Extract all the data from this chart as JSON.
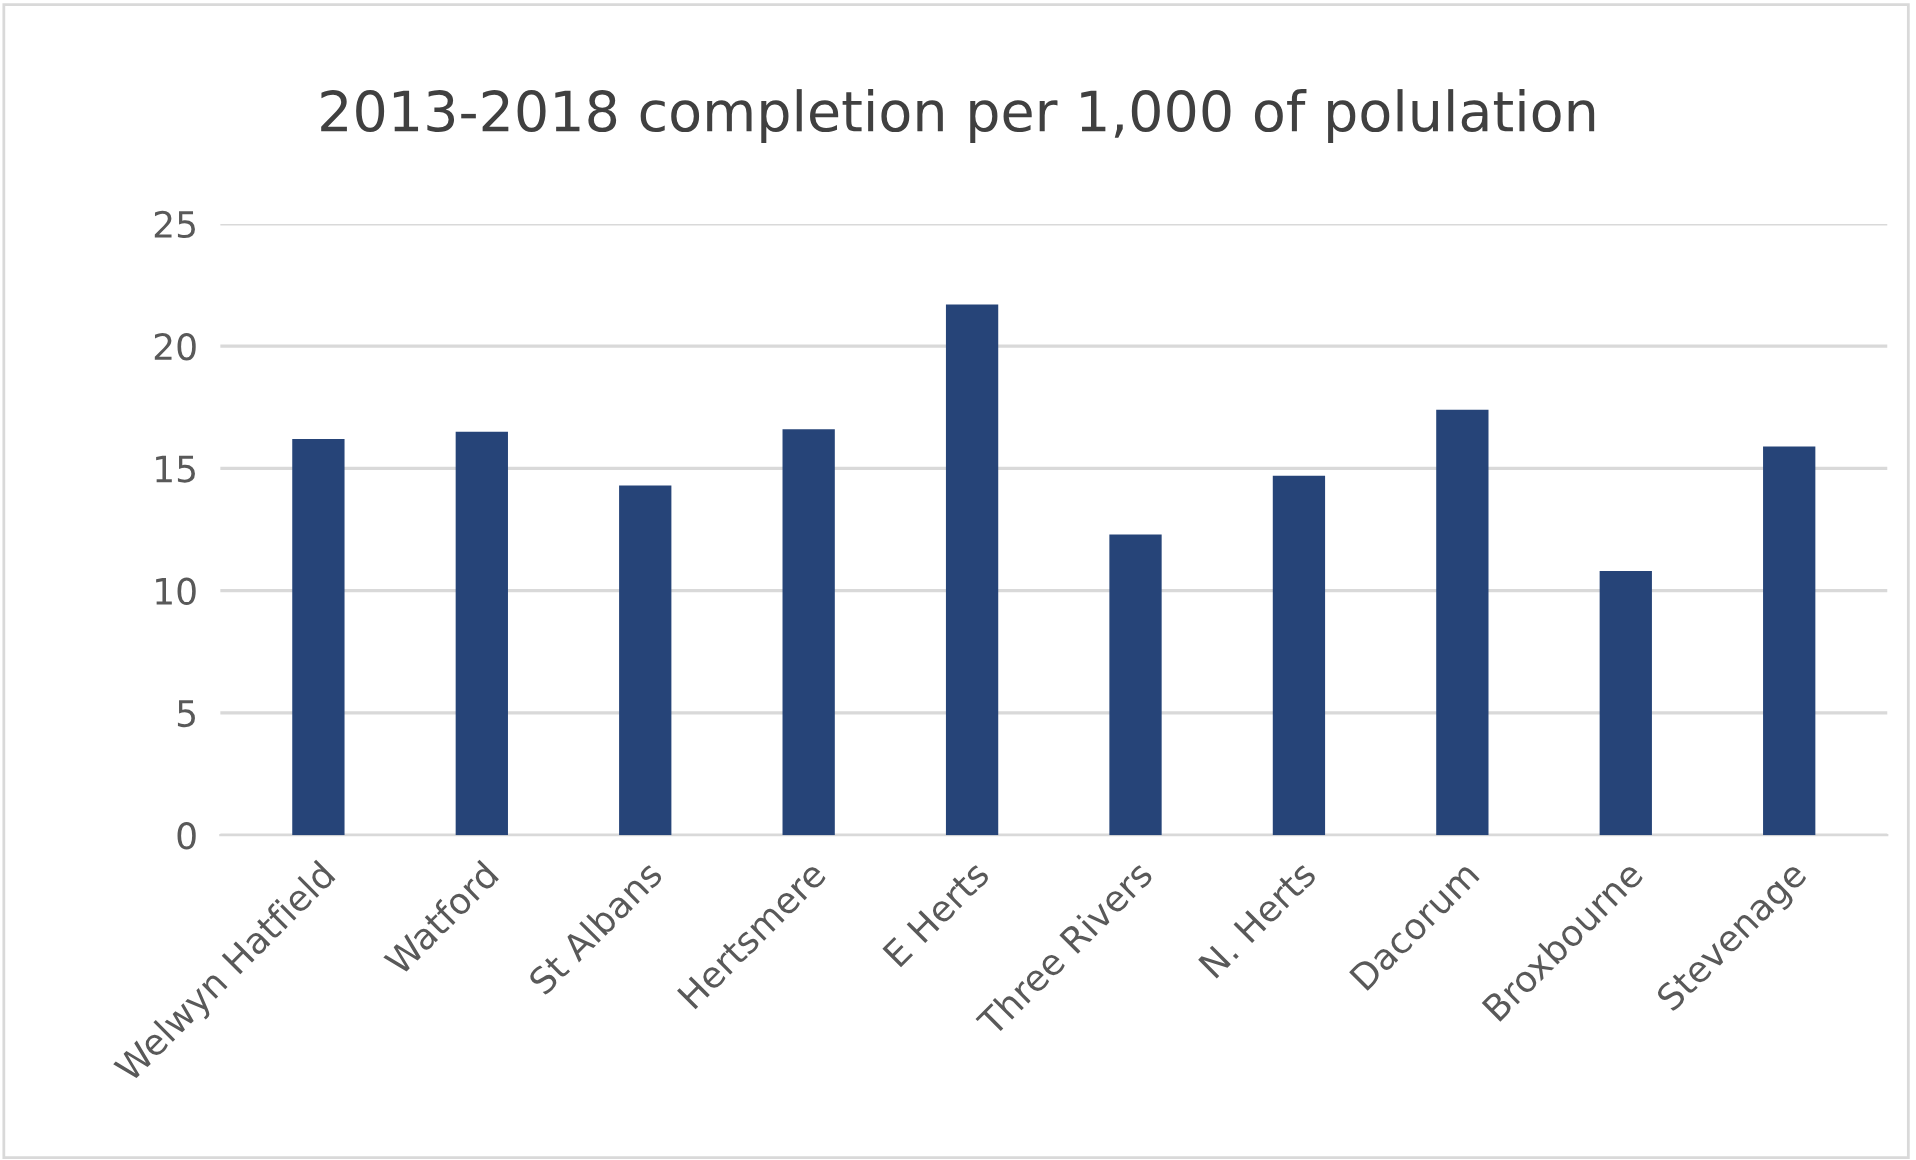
{
  "chart_data": {
    "type": "bar",
    "title": "2013-2018 completion per 1,000 of polulation",
    "categories": [
      "Welwyn Hatfield",
      "Watford",
      "St Albans",
      "Hertsmere",
      "E Herts",
      "Three Rivers",
      "N. Herts",
      "Dacorum",
      "Broxbourne",
      "Stevenage"
    ],
    "values": [
      16.2,
      16.5,
      14.3,
      16.6,
      21.7,
      12.3,
      14.7,
      17.4,
      10.8,
      15.9
    ],
    "color": "#264478",
    "ylim": [
      0,
      25
    ],
    "yticks": [
      0,
      5,
      10,
      15,
      20,
      25
    ],
    "grid": "y"
  }
}
